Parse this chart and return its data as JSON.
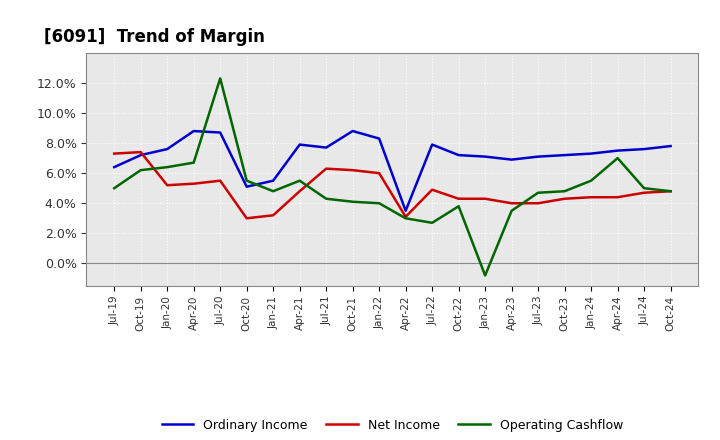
{
  "title": "[6091]  Trend of Margin",
  "x_labels": [
    "Jul-19",
    "Oct-19",
    "Jan-20",
    "Apr-20",
    "Jul-20",
    "Oct-20",
    "Jan-21",
    "Apr-21",
    "Jul-21",
    "Oct-21",
    "Jan-22",
    "Apr-22",
    "Jul-22",
    "Oct-22",
    "Jan-23",
    "Apr-23",
    "Jul-23",
    "Oct-23",
    "Jan-24",
    "Apr-24",
    "Jul-24",
    "Oct-24"
  ],
  "ordinary_income": [
    6.4,
    7.2,
    7.6,
    8.8,
    8.7,
    5.1,
    5.5,
    7.9,
    7.7,
    8.8,
    8.3,
    3.5,
    7.9,
    7.2,
    7.1,
    6.9,
    7.1,
    7.2,
    7.3,
    7.5,
    7.6,
    7.8
  ],
  "net_income": [
    7.3,
    7.4,
    5.2,
    5.3,
    5.5,
    3.0,
    3.2,
    4.8,
    6.3,
    6.2,
    6.0,
    3.1,
    4.9,
    4.3,
    4.3,
    4.0,
    4.0,
    4.3,
    4.4,
    4.4,
    4.7,
    4.8
  ],
  "operating_cashflow": [
    5.0,
    6.2,
    6.4,
    6.7,
    12.3,
    5.5,
    4.8,
    5.5,
    4.3,
    4.1,
    4.0,
    3.0,
    2.7,
    3.8,
    -0.8,
    3.5,
    4.7,
    4.8,
    5.5,
    7.0,
    5.0,
    4.8
  ],
  "ylim": [
    -1.5,
    14.0
  ],
  "yticks": [
    0.0,
    2.0,
    4.0,
    6.0,
    8.0,
    10.0,
    12.0
  ],
  "line_colors": {
    "ordinary_income": "#0000cc",
    "net_income": "#cc0000",
    "operating_cashflow": "#006600"
  },
  "background_color": "#ffffff",
  "plot_bg_color": "#e8e8e8",
  "grid_color": "#ffffff",
  "legend_labels": [
    "Ordinary Income",
    "Net Income",
    "Operating Cashflow"
  ]
}
